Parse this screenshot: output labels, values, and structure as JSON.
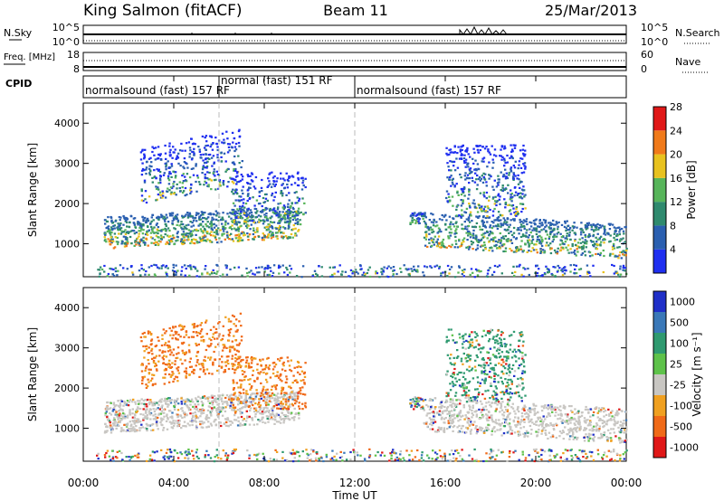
{
  "header": {
    "station": "King Salmon (fitACF)",
    "beam": "Beam 11",
    "date": "25/Mar/2013"
  },
  "chart_data": [
    {
      "type": "line",
      "name": "noise-panel",
      "left_label": "N.Sky",
      "right_label": "N.Search",
      "left_ticks": [
        "10^5",
        "10^0"
      ],
      "right_ticks": [
        "10^5",
        "10^0"
      ]
    },
    {
      "type": "line",
      "name": "frequency-panel",
      "left_label": "Freq. [MHz]",
      "right_label": "Nave",
      "left_ticks": [
        "18",
        "8"
      ],
      "right_ticks": [
        "60",
        "0"
      ]
    },
    {
      "type": "table",
      "name": "cpid-panel",
      "label": "CPID",
      "segments": [
        {
          "start_hour": 0,
          "end_hour": 6,
          "text": "normalsound (fast) 157 RF"
        },
        {
          "start_hour": 6,
          "end_hour": 12,
          "text": "normal (fast) 151 RF"
        },
        {
          "start_hour": 12,
          "end_hour": 24,
          "text": "normalsound (fast) 157 RF"
        }
      ]
    },
    {
      "type": "heatmap",
      "name": "power-panel",
      "ylabel": "Slant Range [km]",
      "yticks": [
        1000,
        2000,
        3000,
        4000
      ],
      "ylim": [
        180,
        4500
      ],
      "xlim": [
        0,
        24
      ],
      "colorbar": {
        "label": "Power [dB]",
        "ticks": [
          "4",
          "8",
          "12",
          "16",
          "20",
          "24",
          "28"
        ],
        "colors": [
          "#1f2ff0",
          "#2a5fb0",
          "#2f8a6e",
          "#57b55a",
          "#e8c21f",
          "#f07a1a",
          "#e01818"
        ]
      }
    },
    {
      "type": "heatmap",
      "name": "velocity-panel",
      "ylabel": "Slant Range [km]",
      "yticks": [
        1000,
        2000,
        3000,
        4000
      ],
      "ylim": [
        180,
        4500
      ],
      "xlim": [
        0,
        24
      ],
      "colorbar": {
        "label": "Velocity [m s⁻¹]",
        "ticks": [
          "1000",
          "500",
          "100",
          "25",
          "-25",
          "-100",
          "-500",
          "-1000"
        ],
        "colors": [
          "#1f2fc8",
          "#3a78b8",
          "#2f9a70",
          "#5ec24a",
          "#c8c6c2",
          "#f0a020",
          "#f06a18",
          "#e01818"
        ]
      }
    }
  ],
  "time_axis": {
    "label": "Time UT",
    "ticks": [
      "00:00",
      "04:00",
      "08:00",
      "12:00",
      "16:00",
      "20:00",
      "00:00"
    ],
    "tick_hours": [
      0,
      4,
      8,
      12,
      16,
      20,
      24
    ]
  }
}
